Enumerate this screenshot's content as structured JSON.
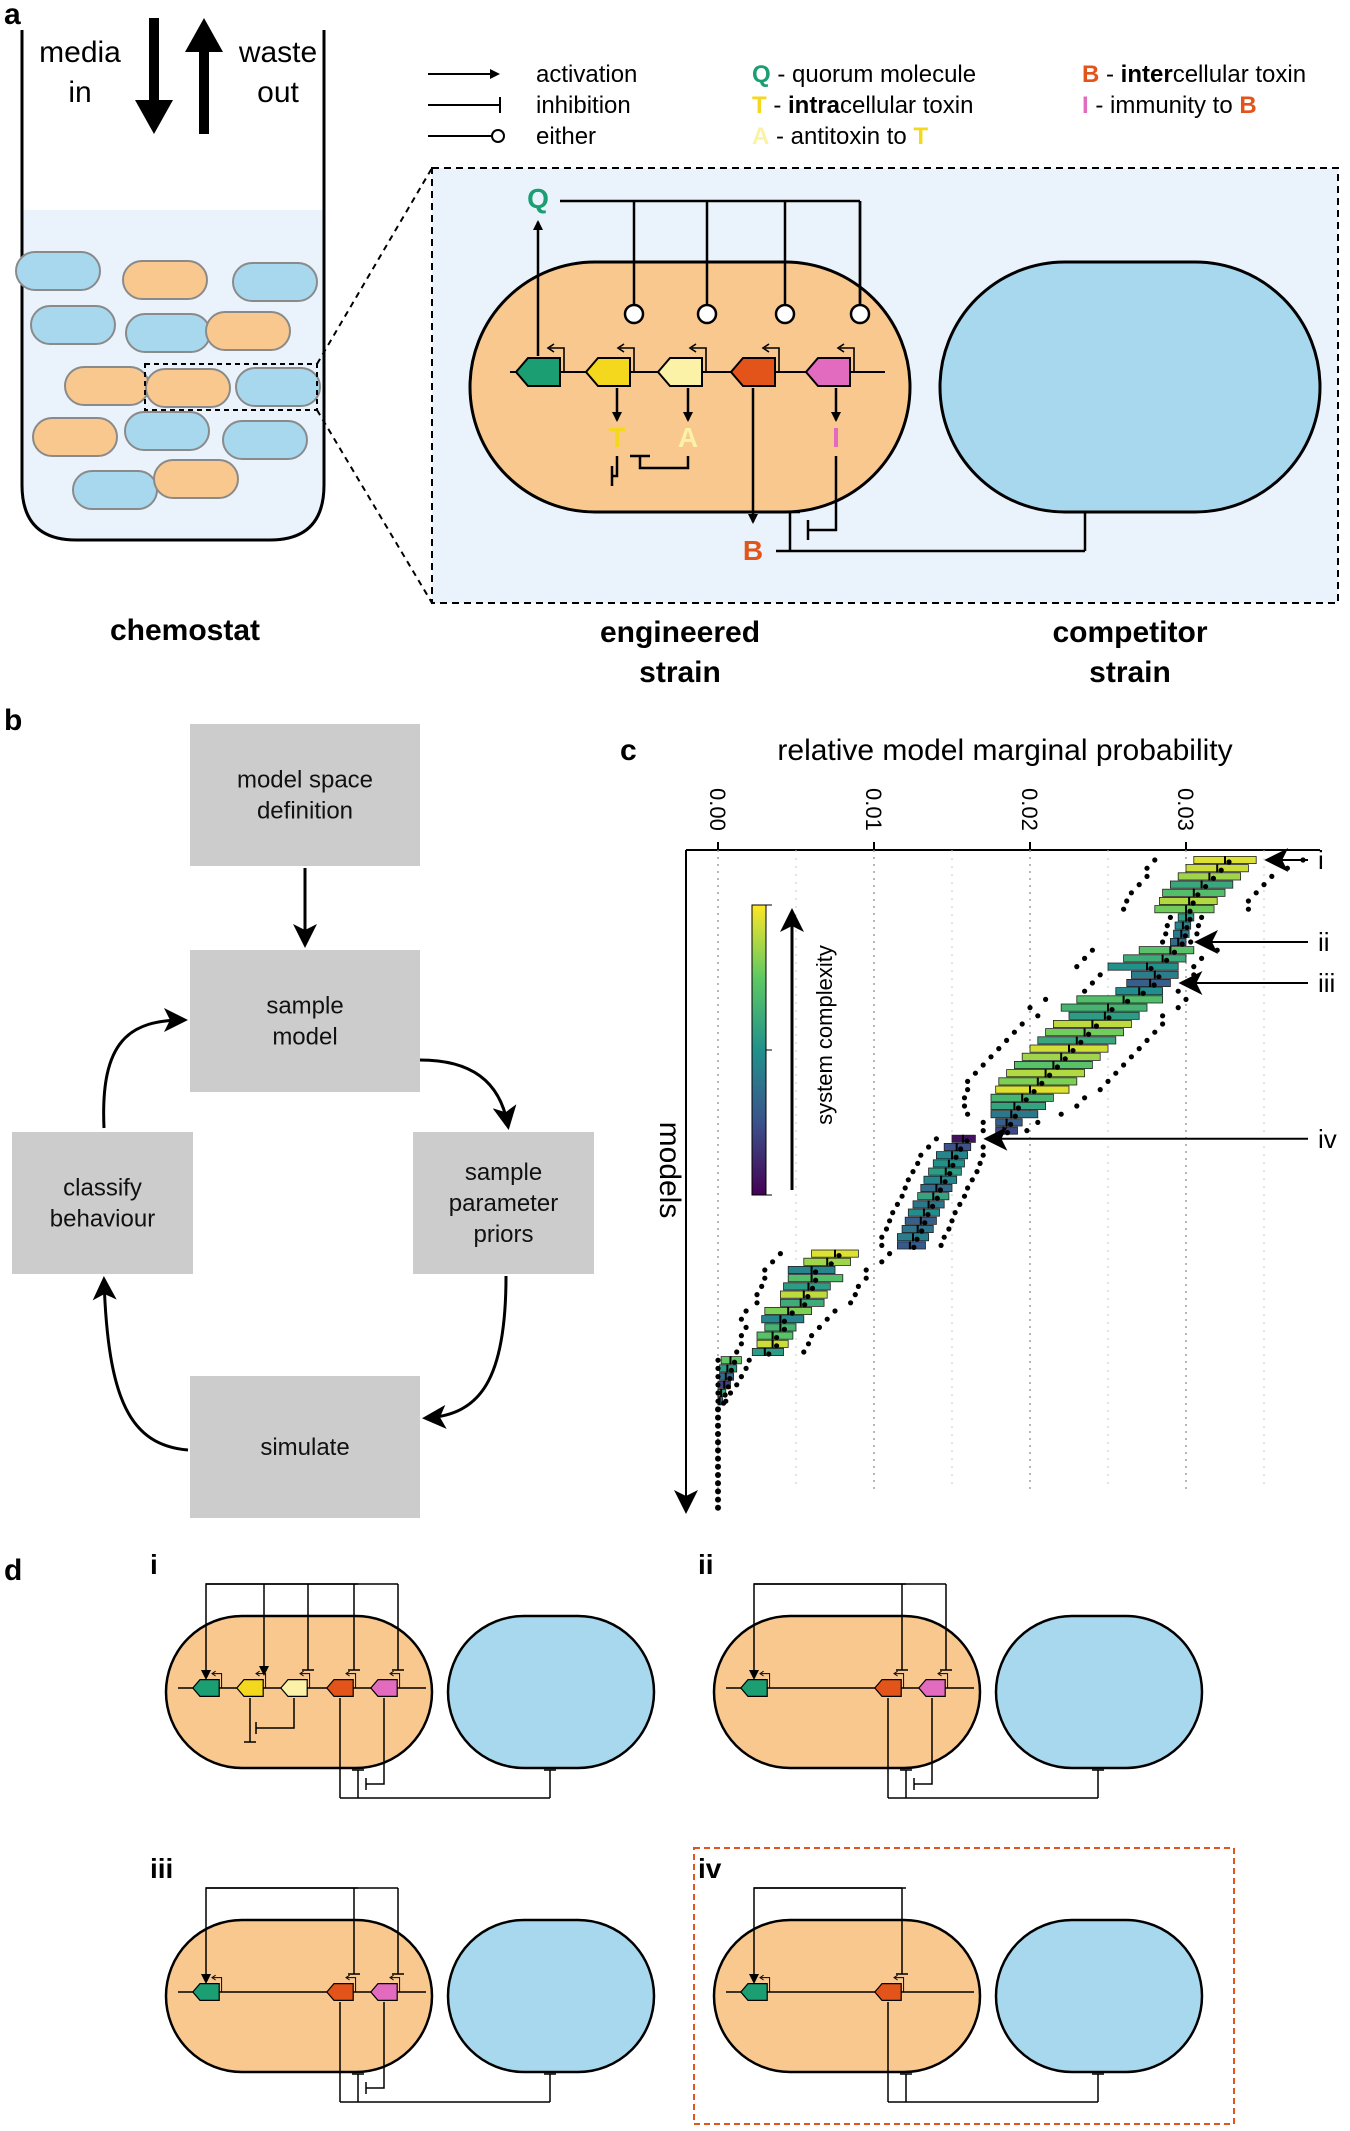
{
  "colors": {
    "engineered_cell": "#f9c88f",
    "competitor_cell": "#a8d8ee",
    "chemostat_fill": "#eaf3fb",
    "zoom_bg": "#eaf3fb",
    "quorum": "#1a9e72",
    "intracellular_toxin": "#f4d81e",
    "antitoxin": "#fbf2a8",
    "intercellular_toxin": "#e3541a",
    "immunity": "#e36bbf",
    "flow_box": "#cccccc",
    "highlight_border": "#e3541a"
  },
  "panel_a": {
    "letter": "a",
    "media_in": [
      "media",
      "in"
    ],
    "waste_out": [
      "waste",
      "out"
    ],
    "chemostat_label": "chemostat",
    "engineered_label": [
      "engineered",
      "strain"
    ],
    "competitor_label": [
      "competitor",
      "strain"
    ],
    "gene_labels": {
      "Q": "Q",
      "T": "T",
      "A": "A",
      "B": "B",
      "I": "I"
    },
    "legend": {
      "arrows": [
        {
          "label": "activation",
          "symbol": "arrow"
        },
        {
          "label": "inhibition",
          "symbol": "bar"
        },
        {
          "label": "either",
          "symbol": "circle"
        }
      ],
      "molecules": [
        {
          "letter": "Q",
          "pre": " - quorum molecule",
          "bold": "",
          "post": "",
          "tail": "",
          "color_key": "quorum"
        },
        {
          "letter": "T",
          "pre": " - ",
          "bold": "intra",
          "post": "cellular toxin",
          "tail": "",
          "color_key": "intracellular_toxin"
        },
        {
          "letter": "A",
          "pre": " - antitoxin to ",
          "bold": "",
          "post": "",
          "tail": "T",
          "color_key": "antitoxin"
        },
        {
          "letter": "B",
          "pre": " - ",
          "bold": "inter",
          "post": "cellular toxin",
          "tail": "",
          "color_key": "intercellular_toxin"
        },
        {
          "letter": "I",
          "pre": " - immunity to ",
          "bold": "",
          "post": "",
          "tail": "B",
          "color_key": "immunity"
        }
      ]
    }
  },
  "panel_b": {
    "letter": "b",
    "steps": [
      {
        "id": "definition",
        "lines": [
          "model space",
          "definition"
        ]
      },
      {
        "id": "sample-model",
        "lines": [
          "sample",
          "model"
        ]
      },
      {
        "id": "sample-priors",
        "lines": [
          "sample",
          "parameter",
          "priors"
        ]
      },
      {
        "id": "simulate",
        "lines": [
          "simulate"
        ]
      },
      {
        "id": "classify",
        "lines": [
          "classify",
          "behaviour"
        ]
      }
    ]
  },
  "panel_c": {
    "letter": "c",
    "colorbar_label": "system complexity",
    "markers": [
      {
        "label": "i",
        "rank": 0
      },
      {
        "label": "ii",
        "rank": 10
      },
      {
        "label": "iii",
        "rank": 15
      },
      {
        "label": "iv",
        "rank": 34
      }
    ]
  },
  "chart_data": {
    "type": "box",
    "title": "relative model marginal probability",
    "xlabel": "relative model marginal probability",
    "ylabel": "models",
    "x_ticks": [
      "0.00",
      "0.01",
      "0.02",
      "0.03"
    ],
    "xlim": [
      -0.002,
      0.038
    ],
    "grid": "vertical dotted",
    "colormap": "viridis",
    "colormap_label": "system complexity",
    "order": "models ranked top to bottom by decreasing median",
    "models": [
      {
        "rank": 0,
        "q1": 0.0305,
        "median": 0.0325,
        "q3": 0.0345,
        "min": 0.028,
        "max": 0.0375,
        "complexity": 0.95
      },
      {
        "rank": 1,
        "q1": 0.03,
        "median": 0.032,
        "q3": 0.034,
        "min": 0.0275,
        "max": 0.0365,
        "complexity": 0.92
      },
      {
        "rank": 2,
        "q1": 0.0295,
        "median": 0.0315,
        "q3": 0.0335,
        "min": 0.0275,
        "max": 0.0355,
        "complexity": 0.85
      },
      {
        "rank": 3,
        "q1": 0.029,
        "median": 0.031,
        "q3": 0.033,
        "min": 0.027,
        "max": 0.035,
        "complexity": 0.6
      },
      {
        "rank": 4,
        "q1": 0.0285,
        "median": 0.0305,
        "q3": 0.0325,
        "min": 0.0265,
        "max": 0.0345,
        "complexity": 0.7
      },
      {
        "rank": 5,
        "q1": 0.0283,
        "median": 0.0302,
        "q3": 0.032,
        "min": 0.0262,
        "max": 0.034,
        "complexity": 0.88
      },
      {
        "rank": 6,
        "q1": 0.028,
        "median": 0.03,
        "q3": 0.0318,
        "min": 0.026,
        "max": 0.034,
        "complexity": 0.78
      },
      {
        "rank": 7,
        "q1": 0.0295,
        "median": 0.03,
        "q3": 0.0305,
        "min": 0.029,
        "max": 0.031,
        "complexity": 0.55
      },
      {
        "rank": 8,
        "q1": 0.0293,
        "median": 0.0298,
        "q3": 0.0303,
        "min": 0.0288,
        "max": 0.0308,
        "complexity": 0.45
      },
      {
        "rank": 9,
        "q1": 0.0292,
        "median": 0.0297,
        "q3": 0.0302,
        "min": 0.0287,
        "max": 0.0307,
        "complexity": 0.4
      },
      {
        "rank": 10,
        "q1": 0.029,
        "median": 0.0295,
        "q3": 0.03,
        "min": 0.0285,
        "max": 0.0303,
        "complexity": 0.35
      },
      {
        "rank": 11,
        "q1": 0.027,
        "median": 0.029,
        "q3": 0.0305,
        "min": 0.024,
        "max": 0.032,
        "complexity": 0.72
      },
      {
        "rank": 12,
        "q1": 0.026,
        "median": 0.0285,
        "q3": 0.03,
        "min": 0.0235,
        "max": 0.031,
        "complexity": 0.62
      },
      {
        "rank": 13,
        "q1": 0.025,
        "median": 0.0275,
        "q3": 0.0295,
        "min": 0.023,
        "max": 0.0305,
        "complexity": 0.5
      },
      {
        "rank": 14,
        "q1": 0.0265,
        "median": 0.028,
        "q3": 0.0295,
        "min": 0.0245,
        "max": 0.0305,
        "complexity": 0.42
      },
      {
        "rank": 15,
        "q1": 0.0262,
        "median": 0.0277,
        "q3": 0.029,
        "min": 0.024,
        "max": 0.03,
        "complexity": 0.3
      },
      {
        "rank": 16,
        "q1": 0.0255,
        "median": 0.027,
        "q3": 0.0285,
        "min": 0.0235,
        "max": 0.0295,
        "complexity": 0.48
      },
      {
        "rank": 17,
        "q1": 0.023,
        "median": 0.026,
        "q3": 0.0285,
        "min": 0.021,
        "max": 0.03,
        "complexity": 0.7
      },
      {
        "rank": 18,
        "q1": 0.022,
        "median": 0.025,
        "q3": 0.0275,
        "min": 0.02,
        "max": 0.0295,
        "complexity": 0.65
      },
      {
        "rank": 19,
        "q1": 0.0225,
        "median": 0.0248,
        "q3": 0.027,
        "min": 0.0205,
        "max": 0.0285,
        "complexity": 0.55
      },
      {
        "rank": 20,
        "q1": 0.0215,
        "median": 0.024,
        "q3": 0.0265,
        "min": 0.0195,
        "max": 0.0285,
        "complexity": 0.9
      },
      {
        "rank": 21,
        "q1": 0.021,
        "median": 0.0235,
        "q3": 0.026,
        "min": 0.019,
        "max": 0.028,
        "complexity": 0.78
      },
      {
        "rank": 22,
        "q1": 0.0205,
        "median": 0.023,
        "q3": 0.0255,
        "min": 0.0185,
        "max": 0.0275,
        "complexity": 0.6
      },
      {
        "rank": 23,
        "q1": 0.02,
        "median": 0.0225,
        "q3": 0.025,
        "min": 0.018,
        "max": 0.027,
        "complexity": 0.93
      },
      {
        "rank": 24,
        "q1": 0.0195,
        "median": 0.022,
        "q3": 0.0245,
        "min": 0.0175,
        "max": 0.0265,
        "complexity": 0.85
      },
      {
        "rank": 25,
        "q1": 0.019,
        "median": 0.0215,
        "q3": 0.024,
        "min": 0.017,
        "max": 0.026,
        "complexity": 0.72
      },
      {
        "rank": 26,
        "q1": 0.0185,
        "median": 0.021,
        "q3": 0.0235,
        "min": 0.0165,
        "max": 0.0255,
        "complexity": 0.88
      },
      {
        "rank": 27,
        "q1": 0.018,
        "median": 0.0205,
        "q3": 0.023,
        "min": 0.016,
        "max": 0.025,
        "complexity": 0.8
      },
      {
        "rank": 28,
        "q1": 0.0178,
        "median": 0.02,
        "q3": 0.0225,
        "min": 0.016,
        "max": 0.0245,
        "complexity": 0.95
      },
      {
        "rank": 29,
        "q1": 0.0175,
        "median": 0.0195,
        "q3": 0.0215,
        "min": 0.0158,
        "max": 0.0235,
        "complexity": 0.66
      },
      {
        "rank": 30,
        "q1": 0.0175,
        "median": 0.019,
        "q3": 0.021,
        "min": 0.0158,
        "max": 0.023,
        "complexity": 0.58
      },
      {
        "rank": 31,
        "q1": 0.0175,
        "median": 0.0188,
        "q3": 0.0205,
        "min": 0.016,
        "max": 0.022,
        "complexity": 0.4
      },
      {
        "rank": 32,
        "q1": 0.0178,
        "median": 0.0185,
        "q3": 0.0195,
        "min": 0.017,
        "max": 0.0205,
        "complexity": 0.3
      },
      {
        "rank": 33,
        "q1": 0.0178,
        "median": 0.0183,
        "q3": 0.0192,
        "min": 0.017,
        "max": 0.0198,
        "complexity": 0.22
      },
      {
        "rank": 34,
        "q1": 0.015,
        "median": 0.0157,
        "q3": 0.0165,
        "min": 0.014,
        "max": 0.0175,
        "complexity": 0.05
      },
      {
        "rank": 35,
        "q1": 0.0145,
        "median": 0.0153,
        "q3": 0.0162,
        "min": 0.0135,
        "max": 0.017,
        "complexity": 0.25
      },
      {
        "rank": 36,
        "q1": 0.014,
        "median": 0.015,
        "q3": 0.016,
        "min": 0.013,
        "max": 0.017,
        "complexity": 0.45
      },
      {
        "rank": 37,
        "q1": 0.0138,
        "median": 0.0148,
        "q3": 0.0158,
        "min": 0.0128,
        "max": 0.0168,
        "complexity": 0.5
      },
      {
        "rank": 38,
        "q1": 0.0135,
        "median": 0.0146,
        "q3": 0.0156,
        "min": 0.0125,
        "max": 0.0166,
        "complexity": 0.55
      },
      {
        "rank": 39,
        "q1": 0.0132,
        "median": 0.0143,
        "q3": 0.0153,
        "min": 0.0122,
        "max": 0.0163,
        "complexity": 0.45
      },
      {
        "rank": 40,
        "q1": 0.013,
        "median": 0.014,
        "q3": 0.015,
        "min": 0.012,
        "max": 0.016,
        "complexity": 0.35
      },
      {
        "rank": 41,
        "q1": 0.0128,
        "median": 0.0138,
        "q3": 0.0148,
        "min": 0.0118,
        "max": 0.0158,
        "complexity": 0.58
      },
      {
        "rank": 42,
        "q1": 0.0125,
        "median": 0.0135,
        "q3": 0.0145,
        "min": 0.0115,
        "max": 0.0155,
        "complexity": 0.4
      },
      {
        "rank": 43,
        "q1": 0.0122,
        "median": 0.0132,
        "q3": 0.0142,
        "min": 0.0112,
        "max": 0.0152,
        "complexity": 0.48
      },
      {
        "rank": 44,
        "q1": 0.012,
        "median": 0.013,
        "q3": 0.014,
        "min": 0.011,
        "max": 0.015,
        "complexity": 0.3
      },
      {
        "rank": 45,
        "q1": 0.0118,
        "median": 0.0128,
        "q3": 0.0138,
        "min": 0.0108,
        "max": 0.0148,
        "complexity": 0.38
      },
      {
        "rank": 46,
        "q1": 0.0115,
        "median": 0.0125,
        "q3": 0.0135,
        "min": 0.0105,
        "max": 0.0145,
        "complexity": 0.42
      },
      {
        "rank": 47,
        "q1": 0.0115,
        "median": 0.0123,
        "q3": 0.0133,
        "min": 0.0105,
        "max": 0.0143,
        "complexity": 0.28
      },
      {
        "rank": 48,
        "q1": 0.006,
        "median": 0.0075,
        "q3": 0.009,
        "min": 0.004,
        "max": 0.011,
        "complexity": 0.95
      },
      {
        "rank": 49,
        "q1": 0.0055,
        "median": 0.007,
        "q3": 0.0085,
        "min": 0.0035,
        "max": 0.0105,
        "complexity": 0.85
      },
      {
        "rank": 50,
        "q1": 0.0045,
        "median": 0.006,
        "q3": 0.0075,
        "min": 0.003,
        "max": 0.0095,
        "complexity": 0.45
      },
      {
        "rank": 51,
        "q1": 0.0045,
        "median": 0.006,
        "q3": 0.008,
        "min": 0.003,
        "max": 0.0095,
        "complexity": 0.7
      },
      {
        "rank": 52,
        "q1": 0.0042,
        "median": 0.0058,
        "q3": 0.0072,
        "min": 0.0028,
        "max": 0.009,
        "complexity": 0.55
      },
      {
        "rank": 53,
        "q1": 0.004,
        "median": 0.0055,
        "q3": 0.007,
        "min": 0.0025,
        "max": 0.0088,
        "complexity": 0.9
      },
      {
        "rank": 54,
        "q1": 0.004,
        "median": 0.0053,
        "q3": 0.0068,
        "min": 0.0025,
        "max": 0.0085,
        "complexity": 0.62
      },
      {
        "rank": 55,
        "q1": 0.003,
        "median": 0.0045,
        "q3": 0.006,
        "min": 0.0018,
        "max": 0.0075,
        "complexity": 0.8
      },
      {
        "rank": 56,
        "q1": 0.0028,
        "median": 0.004,
        "q3": 0.0055,
        "min": 0.0015,
        "max": 0.007,
        "complexity": 0.45
      },
      {
        "rank": 57,
        "q1": 0.003,
        "median": 0.004,
        "q3": 0.005,
        "min": 0.0018,
        "max": 0.0065,
        "complexity": 0.65
      },
      {
        "rank": 58,
        "q1": 0.0025,
        "median": 0.0035,
        "q3": 0.0048,
        "min": 0.0015,
        "max": 0.006,
        "complexity": 0.72
      },
      {
        "rank": 59,
        "q1": 0.0025,
        "median": 0.0035,
        "q3": 0.0045,
        "min": 0.0015,
        "max": 0.0058,
        "complexity": 0.92
      },
      {
        "rank": 60,
        "q1": 0.0022,
        "median": 0.003,
        "q3": 0.0042,
        "min": 0.0012,
        "max": 0.0055,
        "complexity": 0.55
      },
      {
        "rank": 61,
        "q1": 0.0002,
        "median": 0.0008,
        "q3": 0.0015,
        "min": 0.0,
        "max": 0.002,
        "complexity": 0.75
      },
      {
        "rank": 62,
        "q1": 0.0001,
        "median": 0.0006,
        "q3": 0.0012,
        "min": 0.0,
        "max": 0.0018,
        "complexity": 0.55
      },
      {
        "rank": 63,
        "q1": 0.0001,
        "median": 0.0005,
        "q3": 0.001,
        "min": 0.0,
        "max": 0.0015,
        "complexity": 0.35
      },
      {
        "rank": 64,
        "q1": 0.0,
        "median": 0.0004,
        "q3": 0.0008,
        "min": 0.0,
        "max": 0.0012,
        "complexity": 0.2
      },
      {
        "rank": 65,
        "q1": 0.0,
        "median": 0.0002,
        "q3": 0.0005,
        "min": 0.0,
        "max": 0.0008,
        "complexity": 0.6
      },
      {
        "rank": 66,
        "q1": 0.0,
        "median": 0.0001,
        "q3": 0.0003,
        "min": 0.0,
        "max": 0.0005,
        "complexity": 0.3
      },
      {
        "rank": 67,
        "median": 0.0,
        "complexity": 0.2
      },
      {
        "rank": 68,
        "median": 0.0,
        "complexity": 0.2
      },
      {
        "rank": 69,
        "median": 0.0,
        "complexity": 0.2
      },
      {
        "rank": 70,
        "median": 0.0,
        "complexity": 0.2
      },
      {
        "rank": 71,
        "median": 0.0,
        "complexity": 0.2
      },
      {
        "rank": 72,
        "median": 0.0,
        "complexity": 0.2
      },
      {
        "rank": 73,
        "median": 0.0,
        "complexity": 0.2
      },
      {
        "rank": 74,
        "median": 0.0,
        "complexity": 0.2
      },
      {
        "rank": 75,
        "median": 0.0,
        "complexity": 0.2
      },
      {
        "rank": 76,
        "median": 0.0,
        "complexity": 0.2
      },
      {
        "rank": 77,
        "median": 0.0,
        "complexity": 0.2
      },
      {
        "rank": 78,
        "median": 0.0,
        "complexity": 0.2
      },
      {
        "rank": 79,
        "median": 0.0,
        "complexity": 0.2
      }
    ]
  },
  "panel_d": {
    "letter": "d",
    "topologies": [
      {
        "label": "i",
        "genes": [
          "Q",
          "T",
          "A",
          "B",
          "I"
        ],
        "highlight": false
      },
      {
        "label": "ii",
        "genes": [
          "Q",
          "B",
          "I"
        ],
        "highlight": false
      },
      {
        "label": "iii",
        "genes": [
          "Q",
          "B",
          "I"
        ],
        "highlight": false
      },
      {
        "label": "iv",
        "genes": [
          "Q",
          "B"
        ],
        "highlight": true
      }
    ]
  }
}
